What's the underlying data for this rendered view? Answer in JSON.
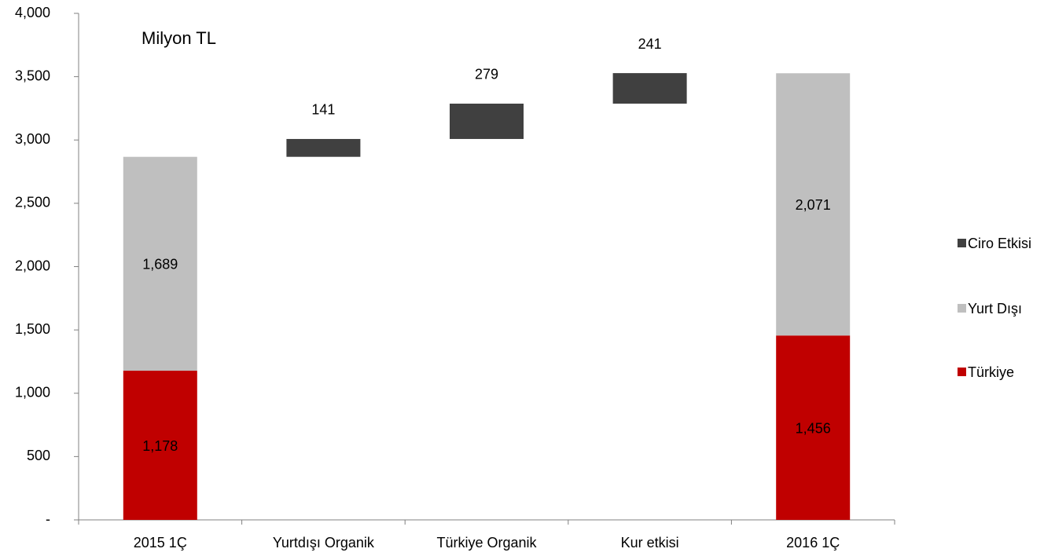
{
  "chart_data": {
    "type": "waterfall",
    "annotation": "Milyon TL",
    "categories": [
      "2015 1Ç",
      "Yurtdışı Organik",
      "Türkiye Organik",
      "Kur etkisi",
      "2016 1Ç"
    ],
    "series": [
      {
        "name": "Türkiye",
        "color": "#c00000",
        "values": [
          1178,
          null,
          null,
          null,
          1456
        ],
        "value_labels": [
          "1,178",
          null,
          null,
          null,
          "1,456"
        ]
      },
      {
        "name": "Yurt Dışı",
        "color": "#bfbfbf",
        "values": [
          1689,
          null,
          null,
          null,
          2071
        ],
        "value_labels": [
          "1,689",
          null,
          null,
          null,
          "2,071"
        ]
      },
      {
        "name": "Ciro Etkisi",
        "color": "#404040",
        "values": [
          null,
          141,
          279,
          241,
          null
        ]
      }
    ],
    "ylim": [
      0,
      4000
    ],
    "yticks": [
      {
        "value": 0,
        "label": "-"
      },
      500,
      {
        "value": 1000,
        "label": "1,000"
      },
      {
        "value": 1500,
        "label": "1,500"
      },
      {
        "value": 2000,
        "label": "2,000"
      },
      {
        "value": 2500,
        "label": "2,500"
      },
      {
        "value": 3000,
        "label": "3,000"
      },
      {
        "value": 3500,
        "label": "3,500"
      },
      {
        "value": 4000,
        "label": "4,000"
      }
    ],
    "legend": "right"
  }
}
